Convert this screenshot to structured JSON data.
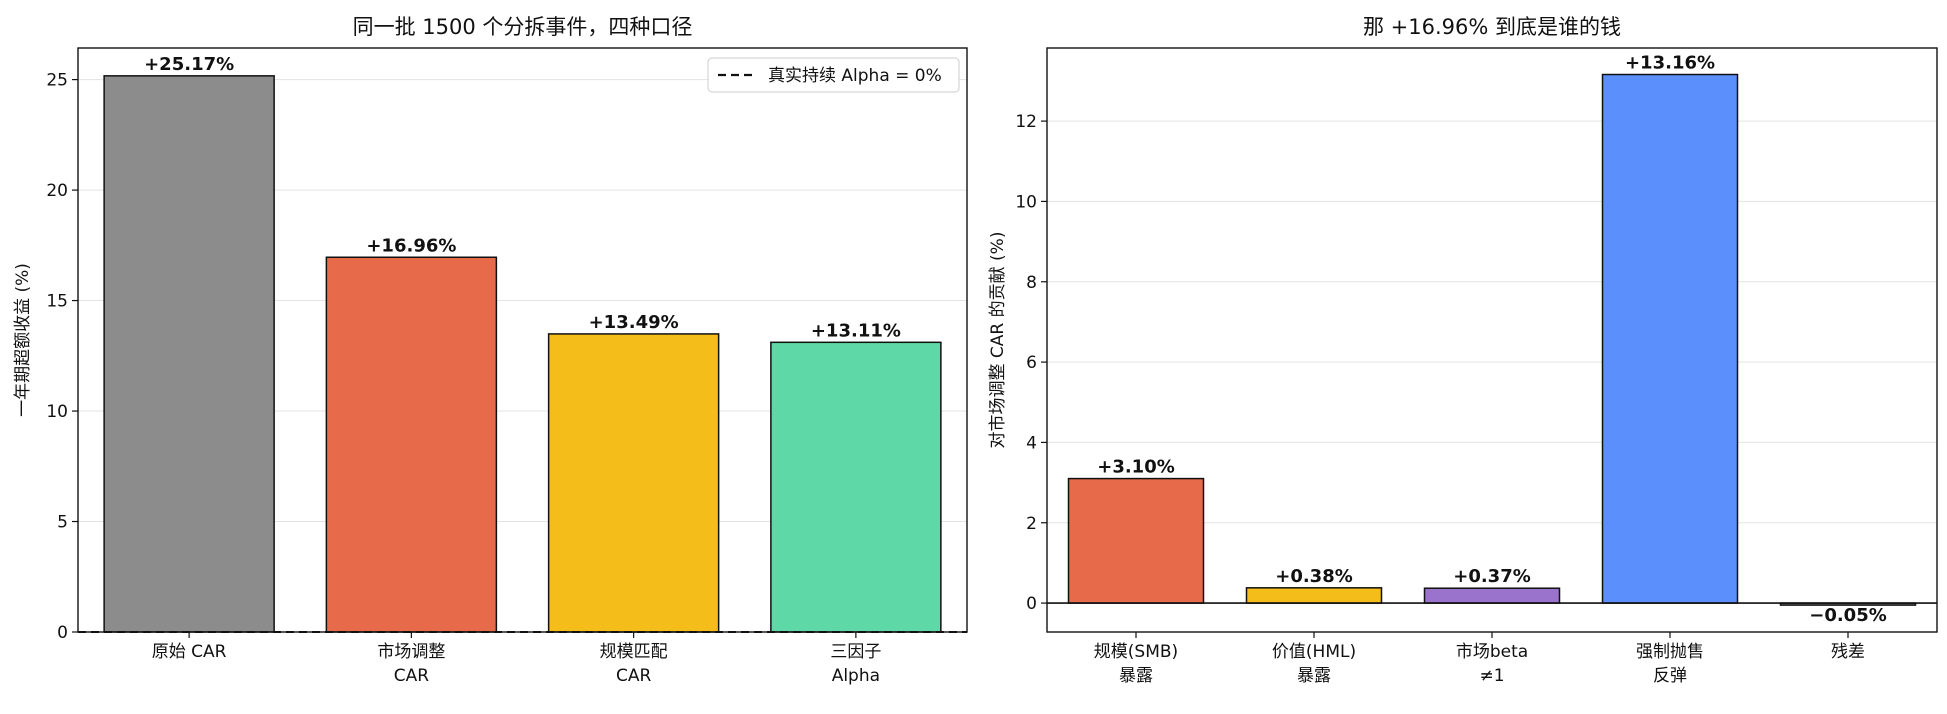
{
  "chart_data": [
    {
      "type": "bar",
      "title": "同一批 1500 个分拆事件，四种口径",
      "ylabel": "一年期超额收益 (%)",
      "xlabel": "",
      "ylim": [
        0,
        26.43
      ],
      "yticks": [
        0,
        5,
        10,
        15,
        20,
        25
      ],
      "grid": "y",
      "categories": [
        [
          "原始 CAR"
        ],
        [
          "市场调整",
          "CAR"
        ],
        [
          "规模匹配",
          "CAR"
        ],
        [
          "三因子",
          "Alpha"
        ]
      ],
      "values": [
        25.17,
        16.96,
        13.49,
        13.11
      ],
      "value_labels": [
        "+25.17%",
        "+16.96%",
        "+13.49%",
        "+13.11%"
      ],
      "colors": [
        "#8c8c8c",
        "#e76a4b",
        "#f5bd19",
        "#5dd8a6"
      ],
      "reference_line": {
        "y": 0,
        "style": "dashed",
        "label": "真实持续 Alpha = 0%"
      },
      "legend": "top-right"
    },
    {
      "type": "bar",
      "title": "那 +16.96% 到底是谁的钱",
      "ylabel": "对市场调整 CAR 的贡献 (%)",
      "xlabel": "",
      "ylim": [
        -0.72,
        13.82
      ],
      "yticks": [
        0,
        2,
        4,
        6,
        8,
        10,
        12
      ],
      "grid": "y",
      "categories": [
        [
          "规模(SMB)",
          "暴露"
        ],
        [
          "价值(HML)",
          "暴露"
        ],
        [
          "市场beta",
          "≠1"
        ],
        [
          "强制抛售",
          "反弹"
        ],
        [
          "残差"
        ]
      ],
      "values": [
        3.1,
        0.38,
        0.37,
        13.16,
        -0.05
      ],
      "value_labels": [
        "+3.10%",
        "+0.38%",
        "+0.37%",
        "+13.16%",
        "−0.05%"
      ],
      "colors": [
        "#e76a4b",
        "#f5bd19",
        "#9a73cd",
        "#5b8ffc",
        "#8c8c8c"
      ],
      "reference_line": {
        "y": 0,
        "style": "solid"
      }
    }
  ]
}
